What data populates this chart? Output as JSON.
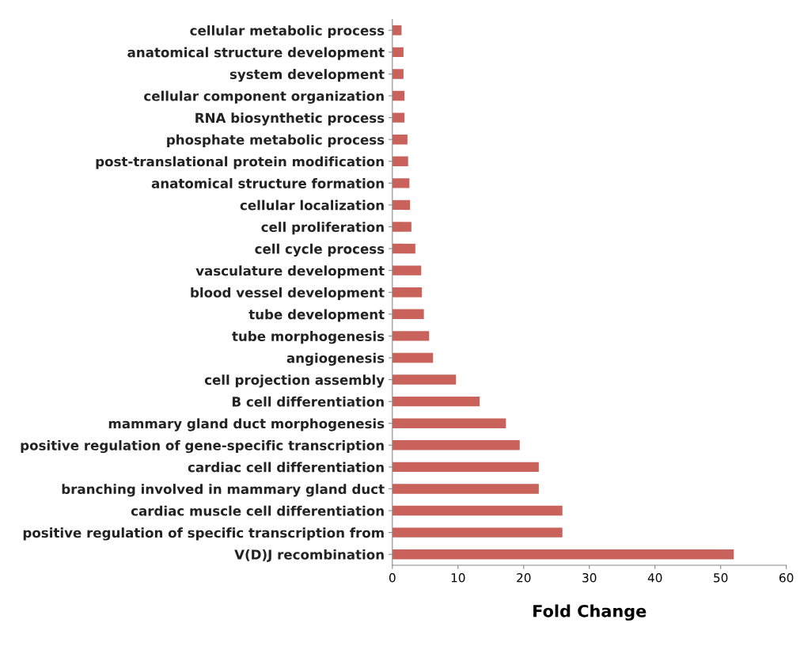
{
  "chart_data": {
    "type": "bar",
    "orientation": "horizontal",
    "xlabel": "Fold Change",
    "categories": [
      "cellular metabolic process",
      "anatomical structure development",
      "system development",
      "cellular component organization",
      "RNA biosynthetic process",
      "phosphate metabolic process",
      "post-translational protein modification",
      "anatomical structure formation",
      "cellular localization",
      "cell proliferation",
      "cell cycle process",
      "vasculature development",
      "blood vessel development",
      "tube development",
      "tube morphogenesis",
      "angiogenesis",
      "cell projection assembly",
      "B cell differentiation",
      "mammary gland duct morphogenesis",
      "positive regulation of gene-specific transcription",
      "cardiac cell differentiation",
      "branching involved in mammary gland duct",
      "cardiac muscle cell differentiation",
      "positive regulation of specific transcription from",
      "V(D)J recombination"
    ],
    "values": [
      1.4,
      1.7,
      1.7,
      1.85,
      1.85,
      2.3,
      2.4,
      2.6,
      2.7,
      2.9,
      3.5,
      4.4,
      4.5,
      4.8,
      5.6,
      6.2,
      9.7,
      13.3,
      17.3,
      19.4,
      22.3,
      22.3,
      25.9,
      25.9,
      52.0
    ],
    "color": "#c9625a",
    "xlim": [
      0,
      60
    ],
    "xticks": [
      0,
      10,
      20,
      30,
      40,
      50,
      60
    ],
    "grid": false,
    "legend": false
  }
}
